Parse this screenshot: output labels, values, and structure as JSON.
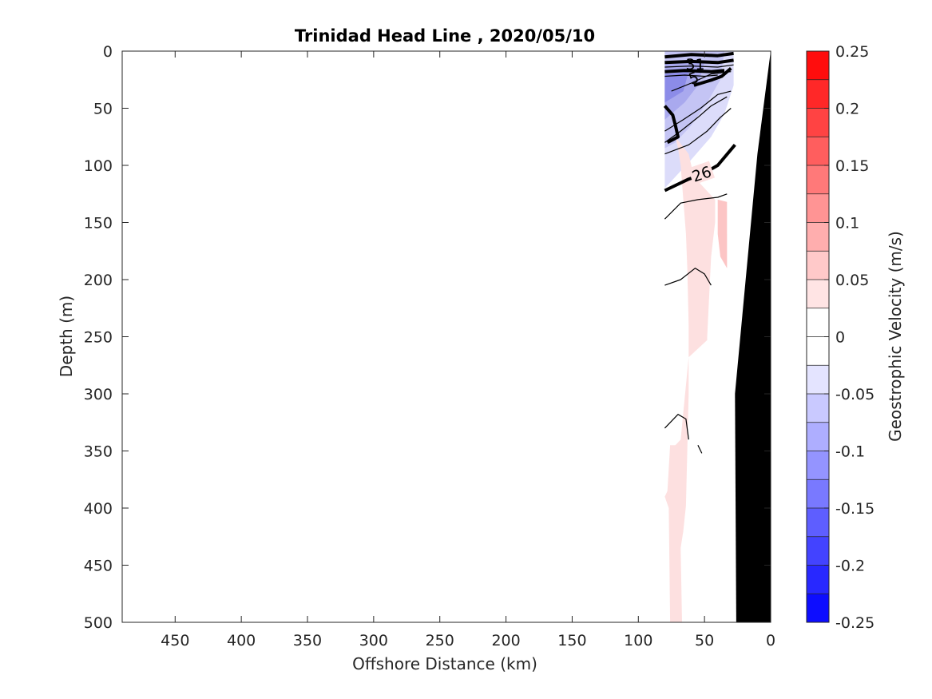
{
  "chart_data": {
    "type": "contour",
    "title": "Trinidad Head Line , 2020/05/10",
    "xlabel": "Offshore Distance (km)",
    "ylabel": "Depth (m)",
    "xlim": [
      490,
      0
    ],
    "ylim": [
      0,
      500
    ],
    "x_reversed": true,
    "y_reversed": true,
    "x_ticks": [
      450,
      400,
      350,
      300,
      250,
      200,
      150,
      100,
      50,
      0
    ],
    "y_ticks": [
      0,
      50,
      100,
      150,
      200,
      250,
      300,
      350,
      400,
      450,
      500
    ],
    "colorbar": {
      "label": "Geostrophic Velocity (m/s)",
      "range": [
        -0.25,
        0.25
      ],
      "step": 0.025,
      "ticks": [
        "0.25",
        "0.2",
        "0.15",
        "0.1",
        "0.05",
        "0",
        "-0.05",
        "-0.1",
        "-0.15",
        "-0.2",
        "-0.25"
      ],
      "tick_values": [
        0.25,
        0.2,
        0.15,
        0.1,
        0.05,
        0,
        -0.05,
        -0.1,
        -0.15,
        -0.2,
        -0.25
      ],
      "colors": {
        "max": "#ff0000",
        "zero": "#ffffff",
        "min": "#0000ff"
      }
    },
    "velocity_regions": [
      {
        "name": "southward-core",
        "value": -0.05,
        "color": "#dcdcfa",
        "points": [
          [
            80,
            0
          ],
          [
            28,
            0
          ],
          [
            28,
            30
          ],
          [
            35,
            55
          ],
          [
            45,
            75
          ],
          [
            60,
            95
          ],
          [
            80,
            120
          ]
        ]
      },
      {
        "name": "southward-mid",
        "value": -0.075,
        "color": "#c4c4f4",
        "points": [
          [
            80,
            0
          ],
          [
            35,
            0
          ],
          [
            38,
            25
          ],
          [
            48,
            45
          ],
          [
            60,
            65
          ],
          [
            72,
            80
          ],
          [
            80,
            85
          ]
        ]
      },
      {
        "name": "southward-strong",
        "value": -0.1,
        "color": "#a9a9ee",
        "points": [
          [
            80,
            10
          ],
          [
            50,
            10
          ],
          [
            55,
            30
          ],
          [
            65,
            45
          ],
          [
            80,
            60
          ]
        ]
      },
      {
        "name": "southward-strongest",
        "value": -0.125,
        "color": "#8c8ce8",
        "points": [
          [
            80,
            20
          ],
          [
            62,
            18
          ],
          [
            66,
            35
          ],
          [
            80,
            45
          ]
        ]
      },
      {
        "name": "northward-weak",
        "value": 0.05,
        "color": "#fde0e0",
        "points": [
          [
            72,
            75
          ],
          [
            62,
            90
          ],
          [
            58,
            110
          ],
          [
            42,
            130
          ],
          [
            42,
            150
          ],
          [
            45,
            180
          ],
          [
            48,
            250
          ],
          [
            48,
            253
          ],
          [
            62,
            268
          ],
          [
            68,
            340
          ],
          [
            72,
            345
          ],
          [
            76,
            345
          ],
          [
            78,
            385
          ],
          [
            80,
            390
          ],
          [
            77,
            400
          ],
          [
            76,
            500
          ],
          [
            67,
            500
          ],
          [
            68,
            435
          ],
          [
            66,
            420
          ],
          [
            64,
            398
          ],
          [
            62,
            300
          ],
          [
            62,
            240
          ],
          [
            63,
            190
          ],
          [
            64,
            160
          ],
          [
            66,
            130
          ],
          [
            68,
            100
          ],
          [
            70,
            85
          ]
        ]
      },
      {
        "name": "northward-moderate",
        "value": 0.075,
        "color": "#fcc5c5",
        "points": [
          [
            40,
            130
          ],
          [
            33,
            132
          ],
          [
            33,
            190
          ],
          [
            38,
            180
          ],
          [
            40,
            160
          ]
        ]
      }
    ],
    "bathymetry": {
      "color": "#000000",
      "points": [
        [
          0,
          0
        ],
        [
          0,
          500
        ],
        [
          26,
          500
        ],
        [
          27,
          300
        ],
        [
          10,
          90
        ],
        [
          0,
          0
        ]
      ]
    },
    "isopycnals": [
      {
        "label": "26",
        "bold": true,
        "points": [
          [
            80,
            122
          ],
          [
            62,
            112
          ],
          [
            52,
            108
          ],
          [
            40,
            100
          ],
          [
            27,
            82
          ]
        ]
      },
      {
        "label": "",
        "bold": true,
        "points": [
          [
            80,
            48
          ],
          [
            74,
            56
          ],
          [
            72,
            65
          ],
          [
            70,
            75
          ],
          [
            78,
            80
          ]
        ]
      },
      {
        "label": "",
        "bold": true,
        "points": [
          [
            58,
            30
          ],
          [
            44,
            25
          ],
          [
            37,
            22
          ],
          [
            30,
            15
          ]
        ]
      },
      {
        "label": "",
        "bold": false,
        "points": [
          [
            80,
            147
          ],
          [
            68,
            133
          ],
          [
            55,
            130
          ],
          [
            40,
            128
          ],
          [
            33,
            125
          ]
        ]
      },
      {
        "label": "",
        "bold": false,
        "points": [
          [
            80,
            205
          ],
          [
            68,
            200
          ],
          [
            57,
            190
          ],
          [
            50,
            195
          ],
          [
            45,
            205
          ]
        ]
      },
      {
        "label": "",
        "bold": false,
        "points": [
          [
            80,
            330
          ],
          [
            70,
            318
          ],
          [
            64,
            322
          ],
          [
            62,
            340
          ]
        ]
      },
      {
        "label": "",
        "bold": false,
        "points": [
          [
            55,
            345
          ],
          [
            52,
            352
          ]
        ]
      },
      {
        "label": "",
        "bold": false,
        "points": [
          [
            80,
            90
          ],
          [
            62,
            82
          ],
          [
            48,
            70
          ],
          [
            38,
            58
          ],
          [
            30,
            50
          ]
        ]
      },
      {
        "label": "",
        "bold": false,
        "points": [
          [
            80,
            80
          ],
          [
            68,
            70
          ],
          [
            55,
            58
          ],
          [
            45,
            48
          ],
          [
            33,
            40
          ]
        ]
      },
      {
        "label": "",
        "bold": false,
        "points": [
          [
            80,
            70
          ],
          [
            66,
            60
          ],
          [
            53,
            50
          ],
          [
            40,
            38
          ],
          [
            30,
            35
          ]
        ]
      },
      {
        "label": "",
        "bold": false,
        "points": [
          [
            75,
            35
          ],
          [
            60,
            28
          ],
          [
            45,
            20
          ],
          [
            30,
            18
          ]
        ]
      },
      {
        "label": "",
        "bold": true,
        "points": [
          [
            80,
            5
          ],
          [
            60,
            3
          ],
          [
            40,
            4
          ],
          [
            28,
            2
          ]
        ]
      },
      {
        "label": "",
        "bold": true,
        "points": [
          [
            80,
            10
          ],
          [
            60,
            9
          ],
          [
            40,
            10
          ],
          [
            28,
            8
          ]
        ]
      },
      {
        "label": "",
        "bold": false,
        "points": [
          [
            80,
            14
          ],
          [
            60,
            13
          ],
          [
            40,
            14
          ],
          [
            28,
            12
          ]
        ]
      },
      {
        "label": "",
        "bold": true,
        "points": [
          [
            80,
            18
          ],
          [
            65,
            17
          ],
          [
            45,
            18
          ],
          [
            35,
            17
          ]
        ]
      },
      {
        "label": "",
        "bold": false,
        "points": [
          [
            80,
            22
          ],
          [
            65,
            21
          ],
          [
            50,
            22
          ],
          [
            40,
            21
          ]
        ]
      }
    ],
    "top_labels": [
      {
        "text": "31",
        "x": 57,
        "y": 12,
        "rotate": 0
      },
      {
        "text": "5",
        "x": 58,
        "y": 24,
        "rotate": -20
      }
    ]
  }
}
